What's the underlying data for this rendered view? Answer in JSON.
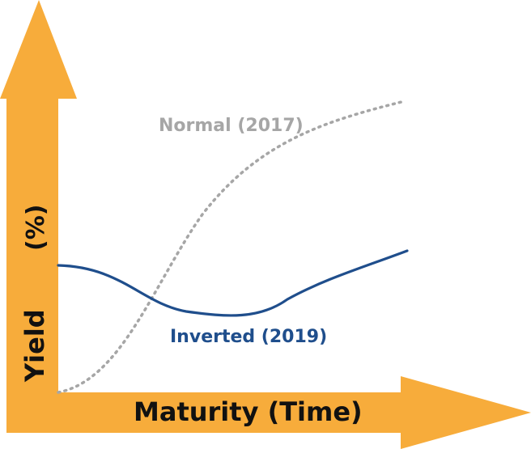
{
  "diagram": {
    "x_axis_label": "Maturity (Time)",
    "y_axis_label_main": "Yield",
    "y_axis_label_unit": "(%)",
    "axis_color": "#F7AC3B",
    "curves": [
      {
        "name": "Normal (2017)",
        "color": "#A6A6A6",
        "style": "dotted"
      },
      {
        "name": "Inverted (2019)",
        "color": "#1F4E8C",
        "style": "solid"
      }
    ]
  }
}
